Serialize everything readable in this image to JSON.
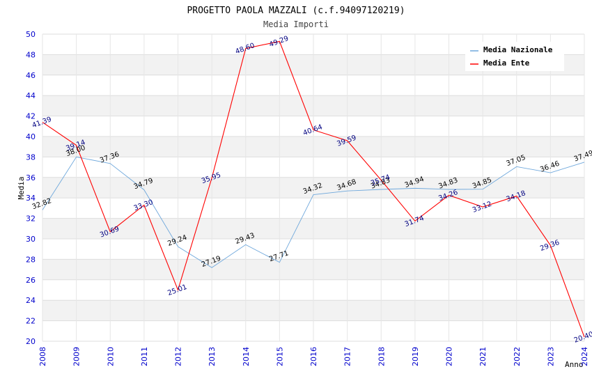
{
  "chart_data": {
    "type": "line",
    "title": "PROGETTO PAOLA MAZZALI (c.f.94097120219)",
    "subtitle": "Media Importi",
    "xlabel": "Anno",
    "ylabel": "Media",
    "ylim": [
      20,
      50
    ],
    "yticks": [
      20,
      22,
      24,
      26,
      28,
      30,
      32,
      34,
      36,
      38,
      40,
      42,
      44,
      46,
      48,
      50
    ],
    "categories": [
      "2008",
      "2009",
      "2010",
      "2011",
      "2012",
      "2013",
      "2014",
      "2015",
      "2016",
      "2017",
      "2018",
      "2019",
      "2020",
      "2021",
      "2022",
      "2023",
      "2024"
    ],
    "legend_position": "top-right",
    "series": [
      {
        "name": "Media Nazionale",
        "color": "#6fa8dc",
        "values": [
          32.82,
          38.0,
          37.36,
          34.79,
          29.24,
          27.19,
          29.43,
          27.71,
          34.32,
          34.68,
          34.83,
          34.94,
          34.83,
          34.85,
          37.05,
          36.46,
          37.49
        ],
        "labels": [
          "32.82",
          "38.00",
          "37.36",
          "34.79",
          "29.24",
          "27.19",
          "29.43",
          "27.71",
          "34.32",
          "34.68",
          "34.83",
          "34.94",
          "34.83",
          "34.85",
          "37.05",
          "36.46",
          "37.49"
        ]
      },
      {
        "name": "Media Ente",
        "color": "#ff0000",
        "values": [
          41.39,
          39.14,
          30.69,
          33.3,
          25.01,
          35.95,
          48.6,
          49.29,
          40.64,
          39.59,
          35.74,
          31.74,
          34.26,
          33.12,
          34.18,
          29.36,
          20.4
        ],
        "labels": [
          "41.39",
          "39.14",
          "30.69",
          "33.30",
          "25.01",
          "35.95",
          "48.60",
          "49.29",
          "40.64",
          "39.59",
          "35.74",
          "31.74",
          "34.26",
          "33.12",
          "34.18",
          "29.36",
          "20.40"
        ]
      }
    ]
  }
}
